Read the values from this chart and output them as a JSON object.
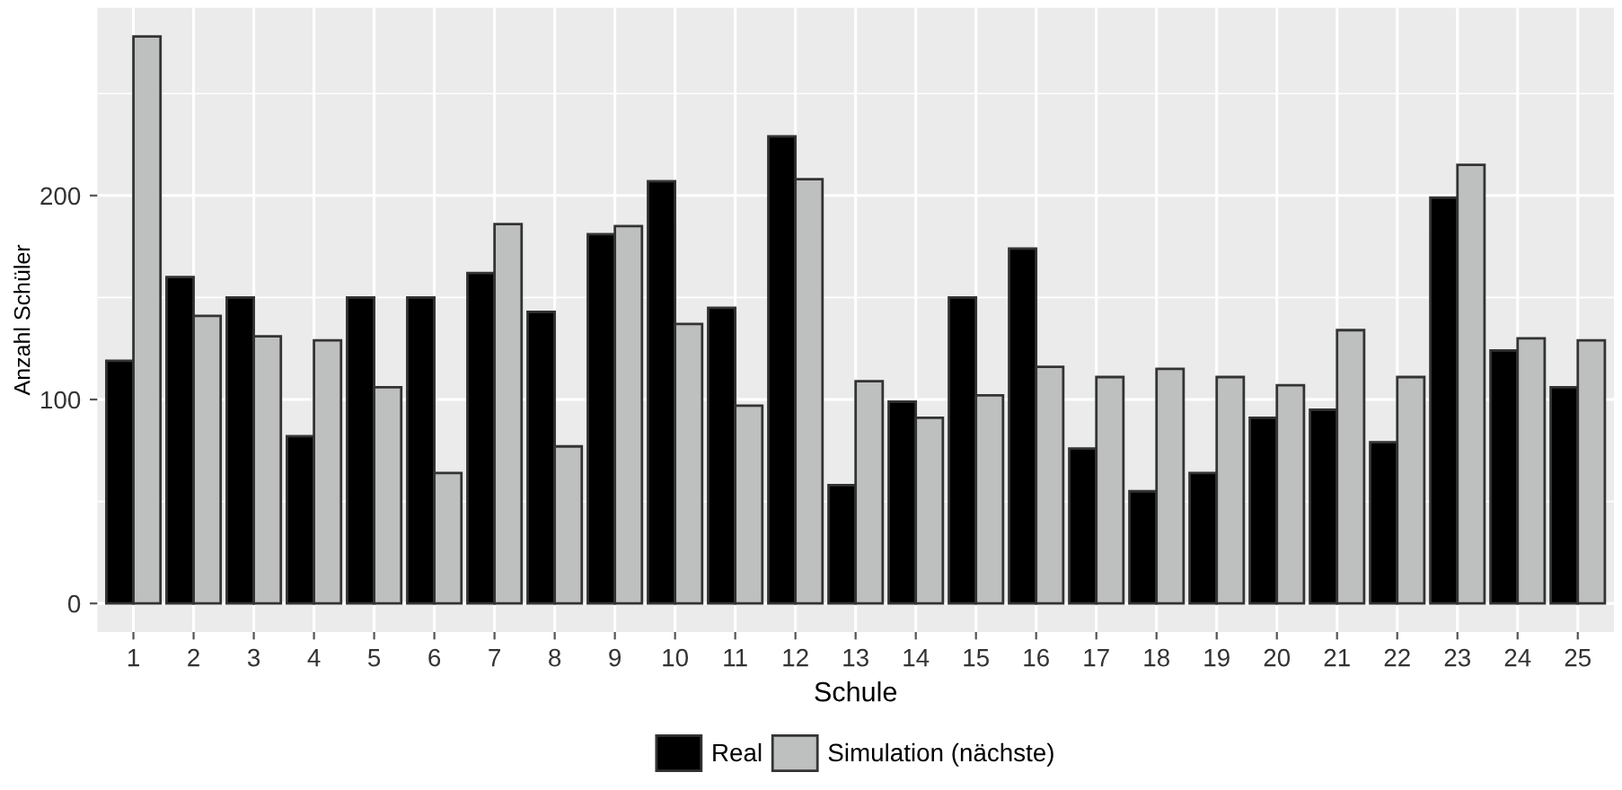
{
  "chart_data": {
    "type": "bar",
    "xlabel": "Schule",
    "ylabel": "Anzahl Schüler",
    "categories": [
      "1",
      "2",
      "3",
      "4",
      "5",
      "6",
      "7",
      "8",
      "9",
      "10",
      "11",
      "12",
      "13",
      "14",
      "15",
      "16",
      "17",
      "18",
      "19",
      "20",
      "21",
      "22",
      "23",
      "24",
      "25"
    ],
    "series": [
      {
        "name": "Real",
        "color": "#000000",
        "values": [
          119,
          160,
          150,
          82,
          150,
          150,
          162,
          143,
          181,
          207,
          145,
          229,
          58,
          99,
          150,
          174,
          76,
          55,
          64,
          91,
          95,
          79,
          199,
          124,
          106
        ]
      },
      {
        "name": "Simulation (nächste)",
        "color": "#bec0bf",
        "values": [
          278,
          141,
          131,
          129,
          106,
          64,
          186,
          77,
          185,
          137,
          97,
          208,
          109,
          91,
          102,
          116,
          111,
          115,
          111,
          107,
          134,
          111,
          215,
          130,
          129
        ]
      }
    ],
    "ylim": [
      -14,
      292
    ],
    "yticks": [
      0,
      100,
      200
    ],
    "grid": true,
    "legend": "bottom"
  }
}
